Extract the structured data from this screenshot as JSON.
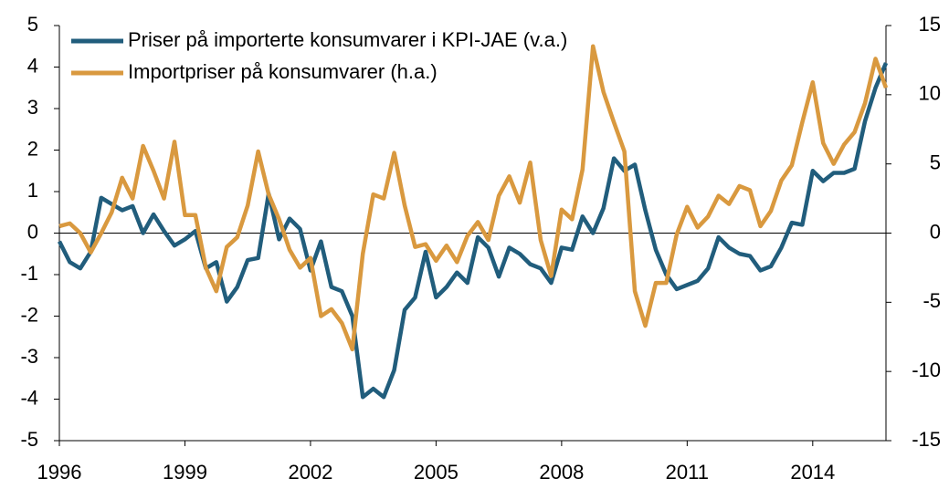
{
  "chart_data": {
    "type": "line",
    "x": [
      1996,
      1996.25,
      1996.5,
      1996.75,
      1997,
      1997.25,
      1997.5,
      1997.75,
      1998,
      1998.25,
      1998.5,
      1998.75,
      1999,
      1999.25,
      1999.5,
      1999.75,
      2000,
      2000.25,
      2000.5,
      2000.75,
      2001,
      2001.25,
      2001.5,
      2001.75,
      2002,
      2002.25,
      2002.5,
      2002.75,
      2003,
      2003.25,
      2003.5,
      2003.75,
      2004,
      2004.25,
      2004.5,
      2004.75,
      2005,
      2005.25,
      2005.5,
      2005.75,
      2006,
      2006.25,
      2006.5,
      2006.75,
      2007,
      2007.25,
      2007.5,
      2007.75,
      2008,
      2008.25,
      2008.5,
      2008.75,
      2009,
      2009.25,
      2009.5,
      2009.75,
      2010,
      2010.25,
      2010.5,
      2010.75,
      2011,
      2011.25,
      2011.5,
      2011.75,
      2012,
      2012.25,
      2012.5,
      2012.75,
      2013,
      2013.25,
      2013.5,
      2013.75,
      2014,
      2014.25,
      2014.5,
      2014.75,
      2015,
      2015.25,
      2015.5,
      2015.75
    ],
    "series": [
      {
        "name": "Priser på importerte konsumvarer i KPI-JAE (v.a.)",
        "color": "#215d7c",
        "axis": "y",
        "values": [
          -0.2,
          -0.7,
          -0.85,
          -0.45,
          0.85,
          0.7,
          0.55,
          0.65,
          0.0,
          0.45,
          0.05,
          -0.3,
          -0.15,
          0.05,
          -0.85,
          -0.7,
          -1.65,
          -1.3,
          -0.65,
          -0.6,
          0.95,
          -0.15,
          0.35,
          0.1,
          -0.9,
          -0.2,
          -1.3,
          -1.4,
          -2.0,
          -3.95,
          -3.75,
          -3.95,
          -3.3,
          -1.85,
          -1.55,
          -0.45,
          -1.55,
          -1.3,
          -0.95,
          -1.2,
          -0.1,
          -0.35,
          -1.05,
          -0.35,
          -0.5,
          -0.75,
          -0.85,
          -1.2,
          -0.35,
          -0.4,
          0.4,
          0.0,
          0.6,
          1.8,
          1.5,
          1.65,
          0.55,
          -0.4,
          -1.0,
          -1.35,
          -1.25,
          -1.15,
          -0.85,
          -0.1,
          -0.35,
          -0.5,
          -0.55,
          -0.9,
          -0.8,
          -0.35,
          0.25,
          0.2,
          1.5,
          1.25,
          1.45,
          1.45,
          1.55,
          2.7,
          3.5,
          4.1
        ]
      },
      {
        "name": "Importpriser på konsumvarer (h.a.)",
        "color": "#d9993f",
        "axis": "y2",
        "values": [
          0.5,
          0.7,
          0.0,
          -1.4,
          0.0,
          1.5,
          4.0,
          2.5,
          6.3,
          4.5,
          2.5,
          6.6,
          1.3,
          1.3,
          -2.5,
          -4.2,
          -1.0,
          -0.3,
          2.0,
          5.9,
          2.8,
          1.0,
          -1.2,
          -2.5,
          -1.8,
          -6.0,
          -5.5,
          -6.5,
          -8.4,
          -1.5,
          2.8,
          2.5,
          5.8,
          2.0,
          -1.0,
          -0.8,
          -2.0,
          -0.9,
          -2.1,
          -0.2,
          0.8,
          -0.5,
          2.7,
          4.1,
          2.2,
          5.1,
          -0.5,
          -3.1,
          1.7,
          1.0,
          4.6,
          13.5,
          10.2,
          8.0,
          5.9,
          -4.2,
          -6.7,
          -3.6,
          -3.6,
          -0.1,
          1.9,
          0.4,
          1.2,
          2.7,
          2.1,
          3.4,
          3.1,
          0.5,
          1.6,
          3.8,
          4.9,
          8.0,
          10.9,
          6.5,
          5.0,
          6.4,
          7.3,
          9.4,
          12.6,
          10.5
        ]
      }
    ],
    "xlim": [
      1996,
      2015.75
    ],
    "xticks": [
      1996,
      1999,
      2002,
      2005,
      2008,
      2011,
      2014
    ],
    "ylim": [
      -5,
      5
    ],
    "yticks": [
      -5,
      -4,
      -3,
      -2,
      -1,
      0,
      1,
      2,
      3,
      4,
      5
    ],
    "y2lim": [
      -15,
      15
    ],
    "y2ticks": [
      -15,
      -10,
      -5,
      0,
      5,
      10,
      15
    ],
    "legend": "upper left"
  }
}
